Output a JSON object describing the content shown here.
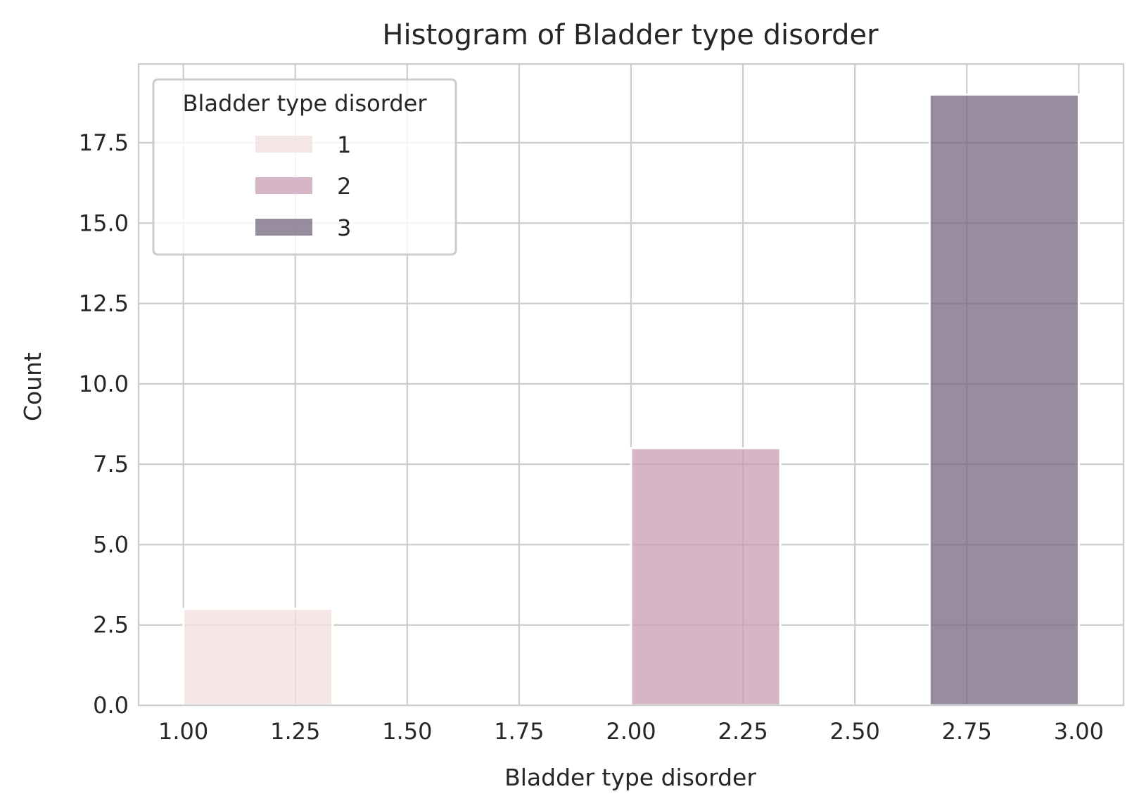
{
  "chart_data": {
    "type": "bar",
    "title": "Histogram of Bladder type disorder",
    "xlabel": "Bladder type disorder",
    "ylabel": "Count",
    "xlim": [
      0.9,
      3.1
    ],
    "ylim": [
      0,
      19.95
    ],
    "xticks": [
      "1.00",
      "1.25",
      "1.50",
      "1.75",
      "2.00",
      "2.25",
      "2.50",
      "2.75",
      "3.00"
    ],
    "yticks": [
      "0.0",
      "2.5",
      "5.0",
      "7.5",
      "10.0",
      "12.5",
      "15.0",
      "17.5"
    ],
    "grid": true,
    "legend": {
      "title": "Bladder type disorder",
      "placement": "top-left",
      "entries": [
        "1",
        "2",
        "3"
      ]
    },
    "series": [
      {
        "name": "1",
        "color": "#f1dfdd",
        "bins": [
          {
            "x0": 1.0,
            "x1": 1.3333,
            "count": 3
          }
        ]
      },
      {
        "name": "2",
        "color": "#c89cb4",
        "bins": [
          {
            "x0": 2.0,
            "x1": 2.3333,
            "count": 8
          }
        ]
      },
      {
        "name": "3",
        "color": "#76667f",
        "bins": [
          {
            "x0": 2.6667,
            "x1": 3.0,
            "count": 19
          }
        ]
      }
    ]
  }
}
